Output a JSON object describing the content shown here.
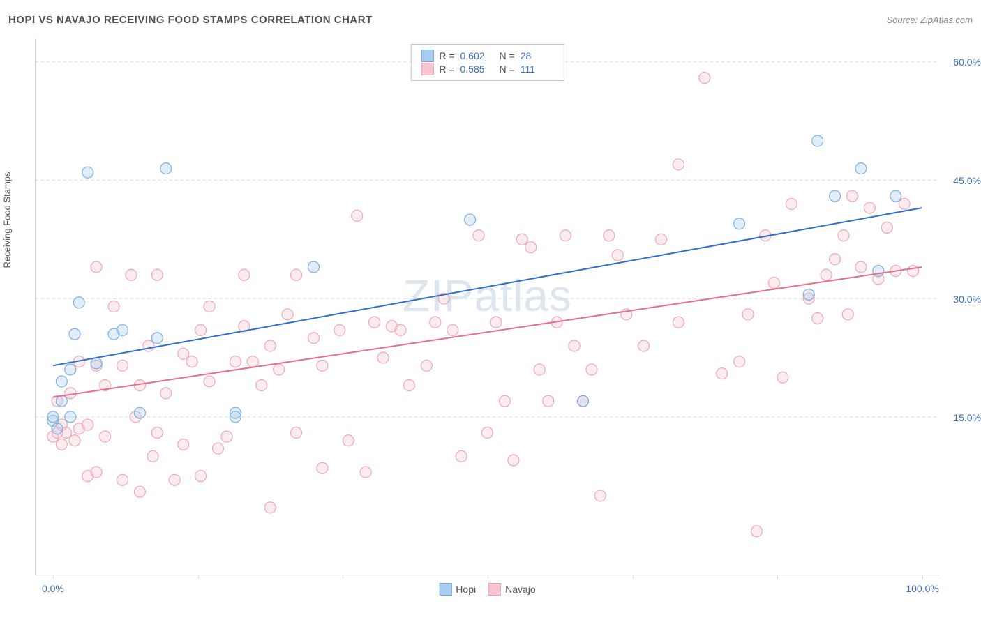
{
  "header": {
    "title": "HOPI VS NAVAJO RECEIVING FOOD STAMPS CORRELATION CHART",
    "source_prefix": "Source: ",
    "source": "ZipAtlas.com"
  },
  "watermark": "ZIPatlas",
  "chart": {
    "type": "scatter",
    "ylabel": "Receiving Food Stamps",
    "background_color": "#ffffff",
    "grid_color": "#d8d8d8",
    "grid_dash": "4 4",
    "text_color": "#505050",
    "axis_value_color": "#3b6fb6",
    "marker_radius": 8,
    "marker_fill_opacity": 0.35,
    "marker_stroke_opacity": 0.9,
    "marker_stroke_width": 1.2,
    "trend_line_width": 2,
    "x_range": [
      -2,
      102
    ],
    "y_range": [
      -5,
      63
    ],
    "y_ticks": [
      15.0,
      30.0,
      45.0,
      60.0
    ],
    "y_tick_labels": [
      "15.0%",
      "30.0%",
      "45.0%",
      "60.0%"
    ],
    "x_tick_positions": [
      0,
      16.67,
      33.33,
      50,
      66.67,
      83.33,
      100
    ],
    "x_tick_labels": {
      "0": "0.0%",
      "100": "100.0%"
    },
    "series": [
      {
        "name": "Hopi",
        "color_fill": "#a9cdef",
        "color_stroke": "#6fa7dd",
        "trend_color": "#2d6fc9",
        "R": "0.602",
        "N": "28",
        "trend": {
          "x1": 0,
          "y1": 21.5,
          "x2": 100,
          "y2": 41.5
        },
        "points": [
          [
            0,
            14.5
          ],
          [
            0,
            15
          ],
          [
            0.5,
            13.5
          ],
          [
            1,
            17
          ],
          [
            1,
            19.5
          ],
          [
            2,
            15
          ],
          [
            2,
            21
          ],
          [
            2.5,
            25.5
          ],
          [
            3,
            29.5
          ],
          [
            4,
            46
          ],
          [
            5,
            21.8
          ],
          [
            7,
            25.5
          ],
          [
            8,
            26
          ],
          [
            10,
            15.5
          ],
          [
            12,
            25
          ],
          [
            13,
            46.5
          ],
          [
            21,
            15.5
          ],
          [
            21,
            15
          ],
          [
            30,
            34
          ],
          [
            48,
            40
          ],
          [
            61,
            17
          ],
          [
            79,
            39.5
          ],
          [
            87,
            30.5
          ],
          [
            88,
            50
          ],
          [
            90,
            43
          ],
          [
            93,
            46.5
          ],
          [
            95,
            33.5
          ],
          [
            97,
            43
          ]
        ]
      },
      {
        "name": "Navajo",
        "color_fill": "#f6c7d1",
        "color_stroke": "#ea9fb0",
        "trend_color": "#e36f8c",
        "R": "0.585",
        "N": "111",
        "trend": {
          "x1": 0,
          "y1": 17.5,
          "x2": 100,
          "y2": 34
        },
        "points": [
          [
            0,
            12.5
          ],
          [
            0.5,
            13
          ],
          [
            0.5,
            17
          ],
          [
            1,
            14
          ],
          [
            1,
            11.5
          ],
          [
            1.5,
            13
          ],
          [
            2,
            18
          ],
          [
            2.5,
            12
          ],
          [
            3,
            13.5
          ],
          [
            3,
            22
          ],
          [
            4,
            7.5
          ],
          [
            4,
            14
          ],
          [
            5,
            34
          ],
          [
            5,
            8
          ],
          [
            5,
            21.5
          ],
          [
            6,
            12.5
          ],
          [
            6,
            19
          ],
          [
            7,
            29
          ],
          [
            8,
            7
          ],
          [
            8,
            21.5
          ],
          [
            9,
            33
          ],
          [
            9.5,
            15
          ],
          [
            10,
            5.5
          ],
          [
            10,
            19
          ],
          [
            11,
            24
          ],
          [
            11.5,
            10
          ],
          [
            12,
            13
          ],
          [
            12,
            33
          ],
          [
            13,
            18
          ],
          [
            14,
            7
          ],
          [
            15,
            23
          ],
          [
            15,
            11.5
          ],
          [
            16,
            22
          ],
          [
            17,
            26
          ],
          [
            17,
            7.5
          ],
          [
            18,
            19.5
          ],
          [
            18,
            29
          ],
          [
            19,
            11
          ],
          [
            20,
            12.5
          ],
          [
            21,
            22
          ],
          [
            22,
            33
          ],
          [
            22,
            26.5
          ],
          [
            23,
            22
          ],
          [
            24,
            19
          ],
          [
            25,
            24
          ],
          [
            25,
            3.5
          ],
          [
            26,
            21
          ],
          [
            27,
            28
          ],
          [
            28,
            13
          ],
          [
            28,
            33
          ],
          [
            30,
            25
          ],
          [
            31,
            21.5
          ],
          [
            31,
            8.5
          ],
          [
            33,
            26
          ],
          [
            34,
            12
          ],
          [
            35,
            40.5
          ],
          [
            36,
            8
          ],
          [
            37,
            27
          ],
          [
            38,
            22.5
          ],
          [
            39,
            26.5
          ],
          [
            40,
            26
          ],
          [
            41,
            19
          ],
          [
            43,
            21.5
          ],
          [
            44,
            27
          ],
          [
            45,
            30
          ],
          [
            46,
            26
          ],
          [
            47,
            10
          ],
          [
            49,
            38
          ],
          [
            50,
            13
          ],
          [
            51,
            27
          ],
          [
            52,
            17
          ],
          [
            53,
            9.5
          ],
          [
            54,
            37.5
          ],
          [
            55,
            36.5
          ],
          [
            56,
            21
          ],
          [
            57,
            17
          ],
          [
            58,
            27
          ],
          [
            59,
            38
          ],
          [
            60,
            24
          ],
          [
            61,
            17
          ],
          [
            62,
            21
          ],
          [
            63,
            5
          ],
          [
            64,
            38
          ],
          [
            65,
            35.5
          ],
          [
            66,
            28
          ],
          [
            68,
            24
          ],
          [
            70,
            37.5
          ],
          [
            72,
            47
          ],
          [
            72,
            27
          ],
          [
            75,
            58
          ],
          [
            77,
            20.5
          ],
          [
            79,
            22
          ],
          [
            80,
            28
          ],
          [
            81,
            0.5
          ],
          [
            82,
            38
          ],
          [
            83,
            32
          ],
          [
            84,
            20
          ],
          [
            85,
            42
          ],
          [
            87,
            30
          ],
          [
            88,
            27.5
          ],
          [
            89,
            33
          ],
          [
            90,
            35
          ],
          [
            91,
            38
          ],
          [
            91.5,
            28
          ],
          [
            92,
            43
          ],
          [
            93,
            34
          ],
          [
            94,
            41.5
          ],
          [
            95,
            32.5
          ],
          [
            96,
            39
          ],
          [
            97,
            33.5
          ],
          [
            98,
            42
          ],
          [
            99,
            33.5
          ]
        ]
      }
    ],
    "bottom_legend": [
      {
        "label": "Hopi",
        "fill": "#a9cdef",
        "stroke": "#6fa7dd"
      },
      {
        "label": "Navajo",
        "fill": "#f6c7d1",
        "stroke": "#ea9fb0"
      }
    ]
  }
}
